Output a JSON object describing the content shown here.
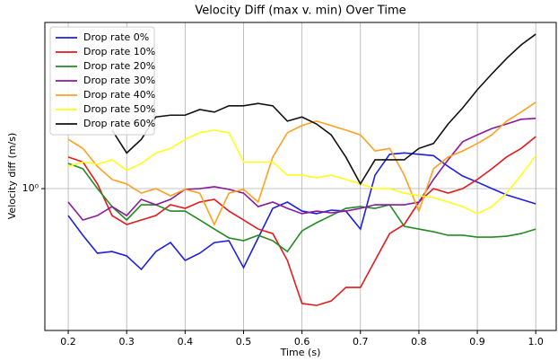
{
  "chart_data": {
    "type": "line",
    "title": "Velocity Diff (max v. min) Over Time",
    "xlabel": "Time (s)",
    "ylabel": "Velocity diff (m/s)",
    "x": [
      0.2,
      0.225,
      0.25,
      0.275,
      0.3,
      0.325,
      0.35,
      0.375,
      0.4,
      0.425,
      0.45,
      0.475,
      0.5,
      0.525,
      0.55,
      0.575,
      0.6,
      0.625,
      0.65,
      0.675,
      0.7,
      0.725,
      0.75,
      0.775,
      0.8,
      0.825,
      0.85,
      0.875,
      0.9,
      0.925,
      0.95,
      0.975,
      1.0
    ],
    "xlim": [
      0.16,
      1.035
    ],
    "xticks": [
      0.2,
      0.3,
      0.4,
      0.5,
      0.6,
      0.7,
      0.8,
      0.9,
      {
        "value": 1.0,
        "label": "1.0"
      }
    ],
    "ylim": [
      0.228,
      5.65
    ],
    "yscale": "log",
    "yticks": [
      {
        "value": 1,
        "label": "10⁰"
      }
    ],
    "grid": true,
    "legend": "upper left",
    "series": [
      {
        "name": "Drop rate 0%",
        "color": "#1f1fe0",
        "values": [
          0.755,
          0.615,
          0.51,
          0.519,
          0.496,
          0.431,
          0.519,
          0.57,
          0.473,
          0.51,
          0.57,
          0.581,
          0.439,
          0.598,
          0.814,
          0.869,
          0.791,
          0.77,
          0.799,
          0.791,
          0.656,
          1.15,
          1.43,
          1.45,
          1.43,
          1.41,
          1.26,
          1.14,
          1.07,
          1.0,
          0.937,
          0.894,
          0.853
        ]
      },
      {
        "name": "Drop rate 10%",
        "color": "#e41a1c",
        "values": [
          1.39,
          1.32,
          1.05,
          0.755,
          0.688,
          0.721,
          0.755,
          0.845,
          0.814,
          0.869,
          0.894,
          0.791,
          0.721,
          0.656,
          0.626,
          0.473,
          0.302,
          0.296,
          0.31,
          0.357,
          0.357,
          0.473,
          0.626,
          0.688,
          0.869,
          1.0,
          0.954,
          1.0,
          1.1,
          1.23,
          1.39,
          1.52,
          1.72
        ]
      },
      {
        "name": "Drop rate 20%",
        "color": "#228b22",
        "values": [
          1.3,
          1.23,
          1.0,
          0.829,
          0.721,
          0.845,
          0.845,
          0.791,
          0.791,
          0.721,
          0.656,
          0.598,
          0.581,
          0.615,
          0.581,
          0.519,
          0.644,
          0.701,
          0.755,
          0.814,
          0.829,
          0.814,
          0.845,
          0.675,
          0.656,
          0.638,
          0.615,
          0.615,
          0.603,
          0.603,
          0.609,
          0.626,
          0.656
        ]
      },
      {
        "name": "Drop rate 30%",
        "color": "#8b1a9b",
        "values": [
          0.869,
          0.721,
          0.755,
          0.829,
          0.755,
          0.894,
          0.845,
          0.894,
          0.992,
          1.0,
          1.02,
          0.992,
          0.954,
          0.829,
          0.869,
          0.814,
          0.77,
          0.791,
          0.777,
          0.791,
          0.814,
          0.845,
          0.845,
          0.845,
          0.869,
          1.1,
          1.35,
          1.63,
          1.75,
          1.87,
          1.96,
          2.06,
          2.08
        ]
      },
      {
        "name": "Drop rate 40%",
        "color": "#ffa01e",
        "values": [
          1.67,
          1.52,
          1.26,
          1.1,
          1.05,
          0.954,
          1.0,
          0.928,
          0.992,
          0.954,
          0.688,
          0.954,
          0.992,
          0.869,
          1.39,
          1.79,
          1.93,
          2.02,
          1.93,
          1.84,
          1.75,
          1.48,
          1.52,
          1.15,
          0.791,
          1.23,
          1.39,
          1.48,
          1.6,
          1.75,
          2.02,
          2.22,
          2.46
        ]
      },
      {
        "name": "Drop rate 50%",
        "color": "#ffff1a",
        "values": [
          1.26,
          1.32,
          1.29,
          1.35,
          1.21,
          1.3,
          1.45,
          1.52,
          1.67,
          1.79,
          1.84,
          1.79,
          1.32,
          1.32,
          1.32,
          1.15,
          1.15,
          1.12,
          1.15,
          1.1,
          1.05,
          1.0,
          1.0,
          0.954,
          0.928,
          0.911,
          0.869,
          0.829,
          0.77,
          0.829,
          0.954,
          1.15,
          1.41
        ]
      },
      {
        "name": "Drop rate 60%",
        "color": "#111111",
        "values": [
          null,
          null,
          null,
          1.84,
          1.45,
          1.67,
          2.11,
          2.15,
          2.15,
          2.28,
          2.22,
          2.37,
          2.37,
          2.43,
          2.37,
          2.02,
          2.11,
          1.96,
          1.75,
          1.39,
          1.05,
          1.35,
          1.35,
          1.35,
          1.52,
          1.6,
          1.96,
          2.32,
          2.8,
          3.31,
          3.88,
          4.47,
          5.0
        ]
      }
    ]
  }
}
